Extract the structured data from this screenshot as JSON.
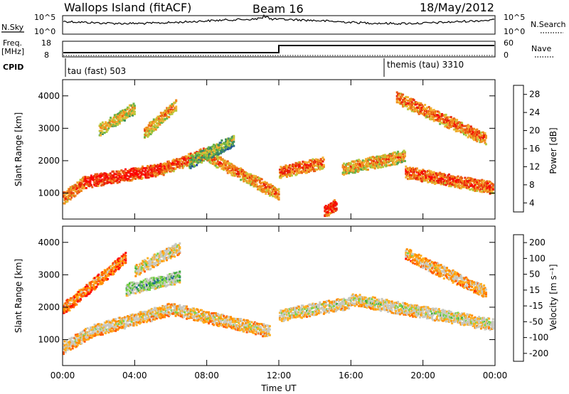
{
  "header": {
    "station": "Wallops Island (fitACF)",
    "beam": "Beam 16",
    "date": "18/May/2012"
  },
  "top_panel_labels": {
    "nsky": "N.Sky",
    "nsky_hi": "10^5",
    "nsky_lo": "10^0",
    "nsearch": "N.Search",
    "nsearch_hi": "10^5",
    "nsearch_lo": "10^0",
    "freq": "Freq.",
    "freq_unit": "[MHz]",
    "freq_hi": "18",
    "freq_lo": "8",
    "nave": "Nave",
    "nave_hi": "60",
    "nave_lo": "0",
    "cpid": "CPID",
    "cpid_1": "tau (fast) 503",
    "cpid_2": "themis (tau) 3310"
  },
  "colors": {
    "power": [
      "#0000ff",
      "#1a3fa0",
      "#2e6c8a",
      "#3f8f5a",
      "#68b447",
      "#b8c83a",
      "#f2b233",
      "#f08a1c",
      "#ea5a14",
      "#e8200c",
      "#ff0000"
    ],
    "velocity": [
      "#ff0000",
      "#ff5a00",
      "#ff8c00",
      "#ffb020",
      "#c8c8c0",
      "#c8c8c0",
      "#7cd448",
      "#3caa3c",
      "#1f6e8c",
      "#2030a8",
      "#0000ff"
    ]
  },
  "chart_data": [
    {
      "type": "heatmap",
      "name": "power",
      "xlabel": "",
      "ylabel": "Slant Range [km]",
      "x_ticks": [
        "00:00",
        "04:00",
        "08:00",
        "12:00",
        "16:00",
        "20:00",
        "00:00"
      ],
      "y_ticks": [
        1000,
        2000,
        3000,
        4000
      ],
      "ylim": [
        200,
        4500
      ],
      "colorbar_label": "Power [dB]",
      "colorbar_ticks": [
        "28",
        "24",
        "20",
        "16",
        "12",
        "8",
        "4"
      ],
      "colorbar_range": [
        0,
        32
      ],
      "bands": [
        {
          "t_start": 0.0,
          "t_end": 1.2,
          "r_start": 900,
          "r_end": 1400,
          "level": 0.8
        },
        {
          "t_start": 1.2,
          "t_end": 5.5,
          "r_start": 1400,
          "r_end": 1800,
          "level": 0.95
        },
        {
          "t_start": 5.5,
          "t_end": 8.0,
          "r_start": 1800,
          "r_end": 2300,
          "level": 0.85
        },
        {
          "t_start": 8.0,
          "t_end": 12.0,
          "r_start": 2200,
          "r_end": 1000,
          "level": 0.75
        },
        {
          "t_start": 12.0,
          "t_end": 14.5,
          "r_start": 1700,
          "r_end": 2000,
          "level": 0.8
        },
        {
          "t_start": 14.5,
          "t_end": 15.2,
          "r_start": 500,
          "r_end": 700,
          "level": 0.95
        },
        {
          "t_start": 15.5,
          "t_end": 19.0,
          "r_start": 1800,
          "r_end": 2200,
          "level": 0.7
        },
        {
          "t_start": 19.0,
          "t_end": 24.0,
          "r_start": 1700,
          "r_end": 1200,
          "level": 0.85
        },
        {
          "t_start": 2.0,
          "t_end": 4.0,
          "r_start": 3000,
          "r_end": 3700,
          "level": 0.6
        },
        {
          "t_start": 4.5,
          "t_end": 6.3,
          "r_start": 2900,
          "r_end": 3800,
          "level": 0.7
        },
        {
          "t_start": 18.5,
          "t_end": 23.5,
          "r_start": 4000,
          "r_end": 2700,
          "level": 0.8
        },
        {
          "t_start": 7.0,
          "t_end": 9.5,
          "r_start": 2000,
          "r_end": 2700,
          "level": 0.5
        }
      ]
    },
    {
      "type": "heatmap",
      "name": "velocity",
      "xlabel": "Time UT",
      "ylabel": "Slant Range [km]",
      "x_ticks": [
        "00:00",
        "04:00",
        "08:00",
        "12:00",
        "16:00",
        "20:00",
        "00:00"
      ],
      "y_ticks": [
        1000,
        2000,
        3000,
        4000
      ],
      "ylim": [
        200,
        4500
      ],
      "colorbar_label": "Velocity [m s⁻¹]",
      "colorbar_ticks": [
        "200",
        "100",
        "50",
        "15",
        "-15",
        "-50",
        "-100",
        "-200"
      ],
      "colorbar_range": [
        -250,
        250
      ],
      "bands": [
        {
          "t_start": 0.0,
          "t_end": 3.5,
          "r_start": 2000,
          "r_end": 3600,
          "level": 0.3
        },
        {
          "t_start": 0.0,
          "t_end": 1.5,
          "r_start": 800,
          "r_end": 1300,
          "level": 0.45
        },
        {
          "t_start": 1.5,
          "t_end": 6.0,
          "r_start": 1300,
          "r_end": 2000,
          "level": 0.45
        },
        {
          "t_start": 4.0,
          "t_end": 6.5,
          "r_start": 3200,
          "r_end": 3900,
          "level": 0.5
        },
        {
          "t_start": 6.0,
          "t_end": 11.5,
          "r_start": 2000,
          "r_end": 1300,
          "level": 0.45
        },
        {
          "t_start": 12.0,
          "t_end": 16.0,
          "r_start": 1800,
          "r_end": 2200,
          "level": 0.5
        },
        {
          "t_start": 16.0,
          "t_end": 24.0,
          "r_start": 2300,
          "r_end": 1500,
          "level": 0.5
        },
        {
          "t_start": 19.0,
          "t_end": 23.5,
          "r_start": 3700,
          "r_end": 2500,
          "level": 0.4
        },
        {
          "t_start": 3.5,
          "t_end": 6.5,
          "r_start": 2600,
          "r_end": 3000,
          "level": 0.65
        }
      ]
    }
  ]
}
